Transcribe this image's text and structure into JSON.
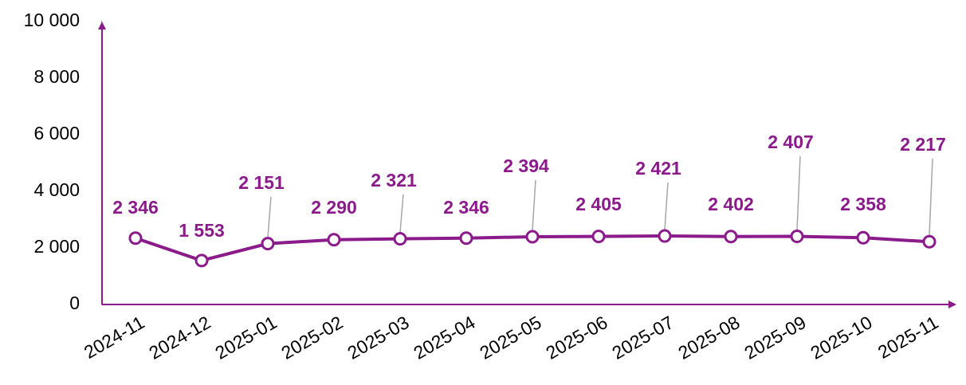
{
  "chart_data": {
    "type": "line",
    "categories": [
      "2024-11",
      "2024-12",
      "2025-01",
      "2025-02",
      "2025-03",
      "2025-04",
      "2025-05",
      "2025-06",
      "2025-07",
      "2025-08",
      "2025-09",
      "2025-10",
      "2025-11"
    ],
    "series": [
      {
        "color": "#8b1a8b",
        "values": [
          2346,
          1553,
          2151,
          2290,
          2321,
          2346,
          2394,
          2405,
          2421,
          2402,
          2407,
          2358,
          2217
        ],
        "value_labels": [
          "2 346",
          "1 553",
          "2 151",
          "2 290",
          "2 321",
          "2 346",
          "2 394",
          "2 405",
          "2 421",
          "2 402",
          "2 407",
          "2 358",
          "2 217"
        ]
      }
    ],
    "ylim": [
      0,
      10000
    ],
    "yticks": [
      0,
      {
        "value": 2000,
        "label": "2 000"
      },
      {
        "value": 4000,
        "label": "4 000"
      },
      {
        "value": 6000,
        "label": "6 000"
      },
      {
        "value": 8000,
        "label": "8 000"
      },
      {
        "value": 10000,
        "label": "10 000"
      }
    ],
    "grid": false
  }
}
